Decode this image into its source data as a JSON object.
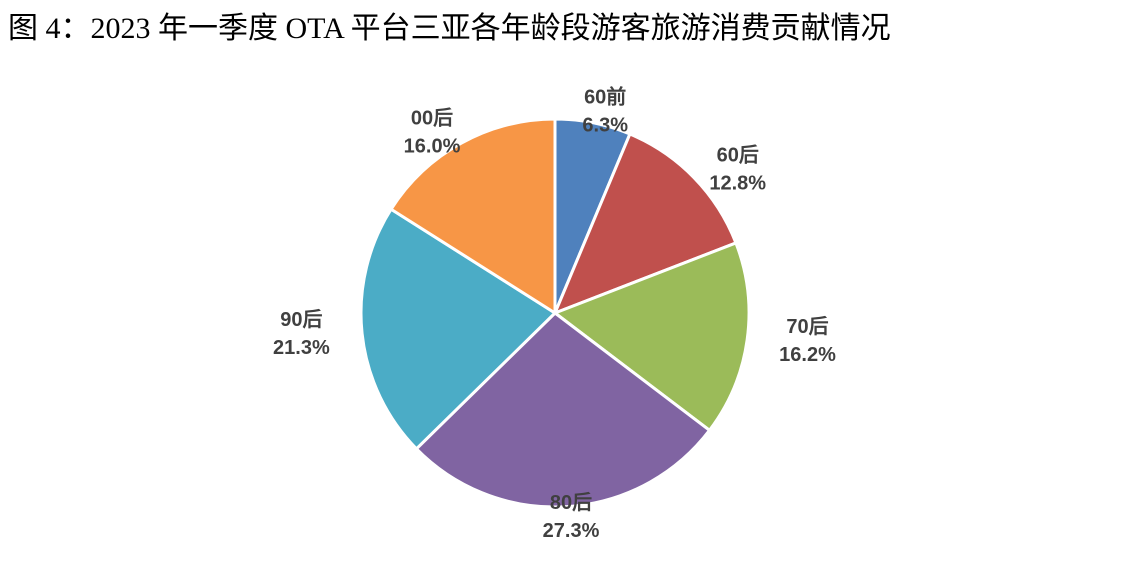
{
  "chart_data": {
    "type": "pie",
    "title": "图 4：2023 年一季度 OTA 平台三亚各年龄段游客旅游消费贡献情况",
    "categories": [
      "60前",
      "60后",
      "70后",
      "80后",
      "90后",
      "00后"
    ],
    "values": [
      6.3,
      12.8,
      16.2,
      27.3,
      21.3,
      16.0
    ],
    "value_labels": [
      "6.3%",
      "12.8%",
      "16.2%",
      "27.3%",
      "21.3%",
      "16.0%"
    ],
    "colors": [
      "#4f81bd",
      "#c0504d",
      "#9bbb59",
      "#8064a2",
      "#4bacc6",
      "#f79646"
    ]
  }
}
